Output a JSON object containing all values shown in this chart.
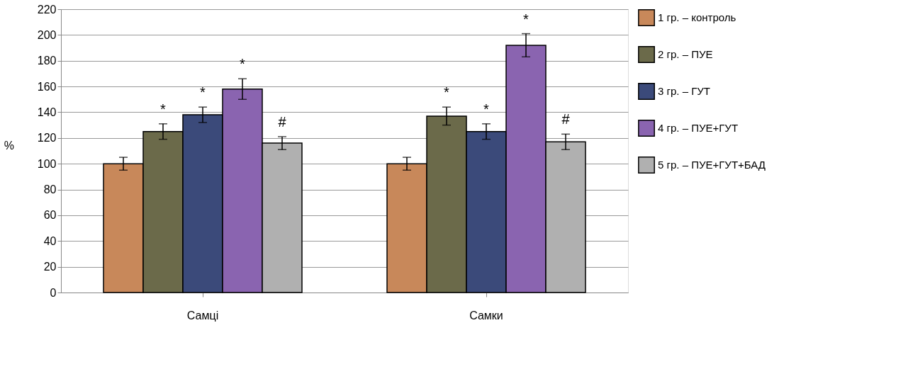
{
  "chart_data": {
    "type": "bar",
    "ylabel": "%",
    "categories": [
      "Самці",
      "Самки"
    ],
    "ylim": [
      0,
      220
    ],
    "yticks": [
      0,
      20,
      40,
      60,
      80,
      100,
      120,
      140,
      160,
      180,
      200,
      220
    ],
    "grid": "y",
    "legend": "right",
    "series": [
      {
        "name": "1 гр. – контроль",
        "color": "#c8885a",
        "values": [
          100,
          100
        ],
        "errors": [
          5,
          5
        ]
      },
      {
        "name": "2 гр. – ПУЕ",
        "color": "#6b6a4a",
        "values": [
          125,
          137
        ],
        "errors": [
          6,
          7
        ],
        "value_labels": [
          "*",
          "*"
        ]
      },
      {
        "name": "3 гр. – ГУТ",
        "color": "#3b4a7a",
        "values": [
          138,
          125
        ],
        "errors": [
          6,
          6
        ],
        "value_labels": [
          "*",
          "*"
        ]
      },
      {
        "name": "4 гр. – ПУЕ+ГУТ",
        "color": "#8a64b0",
        "values": [
          158,
          192
        ],
        "errors": [
          8,
          9
        ],
        "value_labels": [
          "*",
          "*"
        ]
      },
      {
        "name": "5 гр. – ПУЕ+ГУТ+БАД",
        "color": "#b0b0b0",
        "values": [
          116,
          117
        ],
        "errors": [
          5,
          6
        ],
        "value_labels": [
          "#",
          "#"
        ]
      }
    ]
  }
}
